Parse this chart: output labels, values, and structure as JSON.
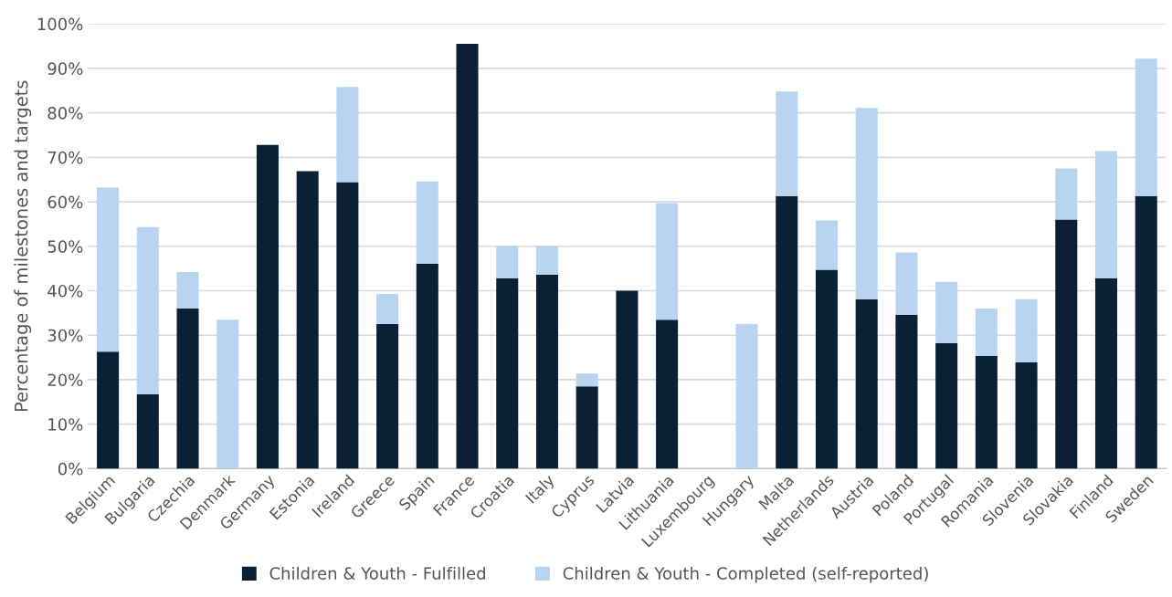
{
  "chart_data": {
    "type": "bar",
    "stacked": true,
    "ylabel": "Percentage of milestones and targets",
    "categories": [
      "Belgium",
      "Bulgaria",
      "Czechia",
      "Denmark",
      "Germany",
      "Estonia",
      "Ireland",
      "Greece",
      "Spain",
      "France",
      "Croatia",
      "Italy",
      "Cyprus",
      "Latvia",
      "Lithuania",
      "Luxembourg",
      "Hungary",
      "Malta",
      "Netherlands",
      "Austria",
      "Poland",
      "Portugal",
      "Romania",
      "Slovenia",
      "Slovakia",
      "Finland",
      "Sweden"
    ],
    "series": [
      {
        "name": "Children & Youth - Fulfilled",
        "color": "#0b1f35",
        "values": [
          26.3,
          16.7,
          36.0,
          0,
          72.8,
          66.9,
          64.4,
          32.5,
          46.1,
          95.5,
          42.8,
          43.6,
          18.5,
          40.0,
          33.5,
          0,
          0,
          61.3,
          44.7,
          38.1,
          34.6,
          28.2,
          25.3,
          23.9,
          56.0,
          42.8,
          61.3
        ]
      },
      {
        "name": "Children & Youth - Completed (self-reported)",
        "color": "#b8d4f0",
        "values": [
          36.9,
          37.6,
          8.2,
          33.5,
          0,
          0,
          21.4,
          6.8,
          18.5,
          0,
          7.2,
          6.4,
          2.9,
          0,
          26.2,
          0,
          32.5,
          23.5,
          11.1,
          43.0,
          14.0,
          13.8,
          10.7,
          14.2,
          11.5,
          28.6,
          30.9
        ]
      }
    ],
    "ylim": [
      0,
      100
    ],
    "yticks": [
      {
        "value": 0,
        "label": "0%"
      },
      {
        "value": 10,
        "label": "10%"
      },
      {
        "value": 20,
        "label": "20%"
      },
      {
        "value": 30,
        "label": "30%"
      },
      {
        "value": 40,
        "label": "40%"
      },
      {
        "value": 50,
        "label": "50%"
      },
      {
        "value": 60,
        "label": "60%"
      },
      {
        "value": 70,
        "label": "70%"
      },
      {
        "value": 80,
        "label": "80%"
      },
      {
        "value": 90,
        "label": "90%"
      },
      {
        "value": 100,
        "label": "100%"
      }
    ],
    "grid": "y",
    "legend": "bottom"
  }
}
